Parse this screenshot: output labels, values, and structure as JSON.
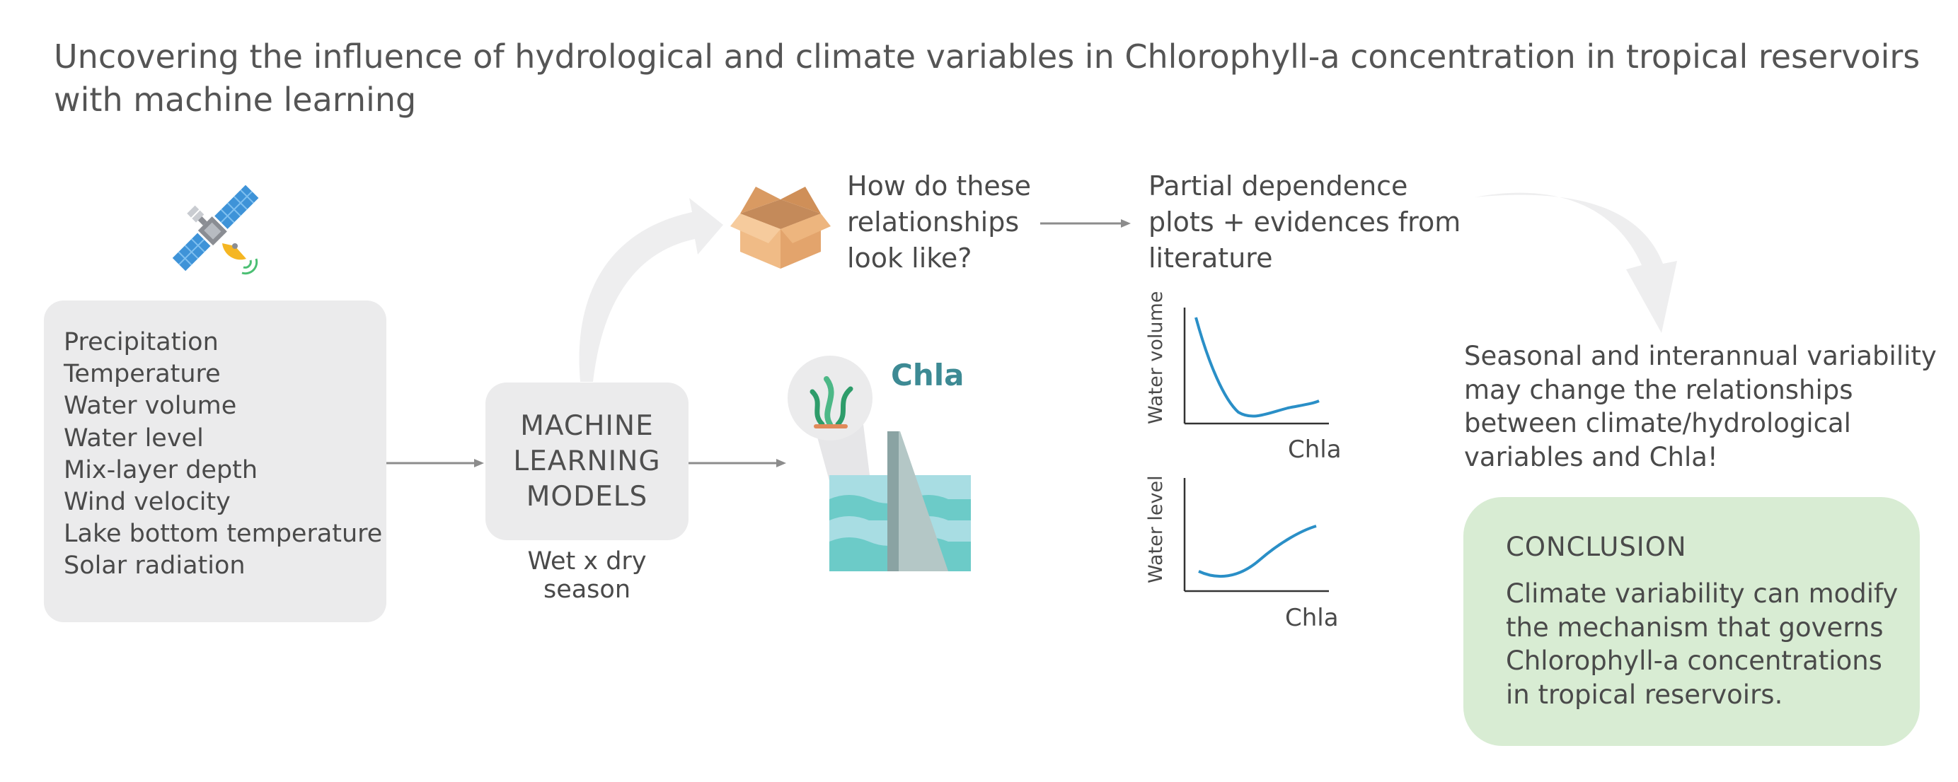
{
  "title": {
    "line1": "Uncovering the influence of hydrological and climate variables in Chlorophyll-a concentration in tropical reservoirs",
    "line2": "with machine learning"
  },
  "variables": [
    "Precipitation",
    "Temperature",
    "Water volume",
    "Water level",
    "Mix-layer depth",
    "Wind velocity",
    "Lake bottom temperature",
    "Solar radiation"
  ],
  "ml_box": {
    "line1": "MACHINE",
    "line2": "LEARNING",
    "line3": "MODELS"
  },
  "season_label": "Wet x dry season",
  "question": [
    "How do these",
    "relationships",
    "look like?"
  ],
  "pdp_text": [
    "Partial dependence",
    "plots + evidences from",
    "literature"
  ],
  "chla_label": "Chla",
  "plot1": {
    "ylabel": "Water volume",
    "xlabel": "Chla"
  },
  "plot2": {
    "ylabel": "Water level",
    "xlabel": "Chla"
  },
  "seasonal_text": [
    "Seasonal and interannual variability",
    "may change the relationships",
    "between climate/hydrological",
    "variables and Chla!"
  ],
  "conclusion": {
    "title": "CONCLUSION",
    "body": [
      "Climate variability can modify",
      "the mechanism that governs",
      "Chlorophyll-a concentrations",
      "in tropical reservoirs."
    ]
  },
  "icons": {
    "satellite": "satellite-icon",
    "box": "open-box-icon",
    "algae": "algae-icon",
    "dam": "dam-icon"
  },
  "colors": {
    "box_gray": "#ebebec",
    "conclusion_green": "#d8ecd3",
    "chla_teal": "#3d8a94",
    "curve_blue": "#2a8fc7",
    "water_teal": "#6ccbc8",
    "water_light": "#a8dde3"
  }
}
